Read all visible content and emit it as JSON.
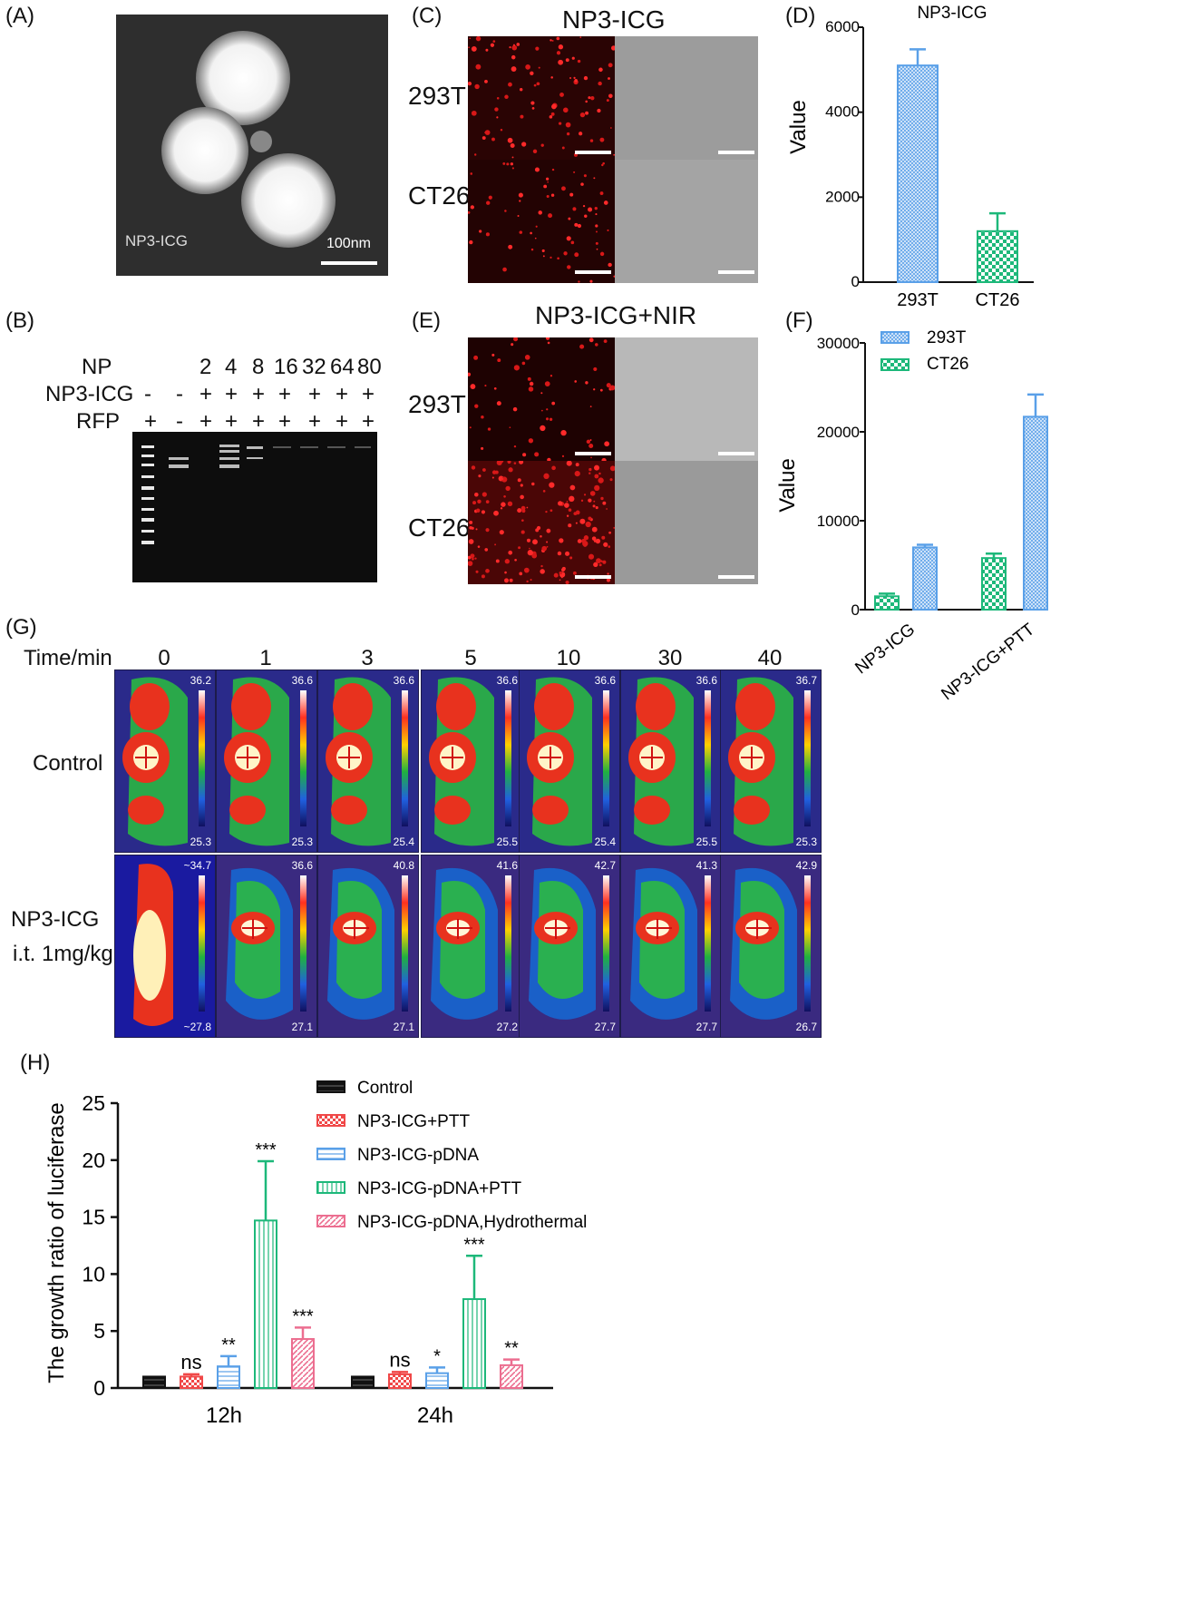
{
  "panels": {
    "A": {
      "label": "(A)",
      "overlay": "NP3-ICG",
      "scale": "100nm"
    },
    "B": {
      "label": "(B)",
      "row_names": [
        "NP",
        "NP3-ICG",
        "RFP"
      ],
      "np_values": [
        "2",
        "4",
        "8",
        "16",
        "32",
        "64",
        "80"
      ],
      "icg_signs": [
        "-",
        "-",
        "+",
        "+",
        "+",
        "+",
        "+",
        "+",
        "+"
      ],
      "rfp_signs": [
        "+",
        "-",
        "+",
        "+",
        "+",
        "+",
        "+",
        "+",
        "+"
      ]
    },
    "C": {
      "label": "(C)",
      "title": "NP3-ICG",
      "rows": [
        "293T",
        "CT26"
      ]
    },
    "E": {
      "label": "(E)",
      "title": "NP3-ICG+NIR",
      "rows": [
        "293T",
        "CT26"
      ]
    },
    "G": {
      "label": "(G)",
      "time_label": "Time/min",
      "times": [
        "0",
        "1",
        "3",
        "5",
        "10",
        "30",
        "40"
      ],
      "row1": "Control",
      "row2a": "NP3-ICG",
      "row2b": "i.t. 1mg/kg",
      "control_max": [
        "36.2",
        "36.6",
        "36.6",
        "36.6",
        "36.6",
        "36.6",
        "36.7"
      ],
      "control_min": [
        "25.3",
        "25.3",
        "25.4",
        "25.5",
        "25.4",
        "25.5",
        "25.3"
      ],
      "icg_max": [
        "~34.7",
        "36.6",
        "40.8",
        "41.6",
        "42.7",
        "41.3",
        "42.9"
      ],
      "icg_min": [
        "~27.8",
        "27.1",
        "27.1",
        "27.2",
        "27.7",
        "27.7",
        "26.7"
      ]
    }
  },
  "colors": {
    "blue": "#5aa0e8",
    "green": "#1db87a",
    "black": "#111111",
    "red": "#f04848",
    "pink": "#ec6e90"
  },
  "chart_data": [
    {
      "id": "D",
      "label": "(D)",
      "type": "bar",
      "title": "NP3-ICG",
      "ylabel": "Value",
      "categories": [
        "293T",
        "CT26"
      ],
      "values": [
        5100,
        1200
      ],
      "errors": [
        380,
        420
      ],
      "ylim": [
        0,
        6000
      ],
      "yticks": [
        "0",
        "2000",
        "4000",
        "6000"
      ]
    },
    {
      "id": "F",
      "label": "(F)",
      "type": "bar",
      "ylabel": "Value",
      "categories": [
        "NP3-ICG",
        "NP3-ICG+PTT"
      ],
      "series": [
        {
          "name": "CT26",
          "values": [
            1500,
            5800
          ],
          "errors": [
            300,
            500
          ]
        },
        {
          "name": "293T",
          "values": [
            7000,
            21700
          ],
          "errors": [
            300,
            2500
          ]
        }
      ],
      "legend": [
        "293T",
        "CT26"
      ],
      "ylim": [
        0,
        30000
      ],
      "yticks": [
        "0",
        "10000",
        "20000",
        "30000"
      ]
    },
    {
      "id": "H",
      "label": "(H)",
      "type": "bar",
      "ylabel": "The growth ratio of luciferase",
      "categories": [
        "12h",
        "24h"
      ],
      "series": [
        {
          "name": "Control",
          "values": [
            1.0,
            1.0
          ],
          "errors": [
            0,
            0
          ],
          "sig": [
            "",
            ""
          ]
        },
        {
          "name": "NP3-ICG+PTT",
          "values": [
            1.0,
            1.2
          ],
          "errors": [
            0.2,
            0.2
          ],
          "sig": [
            "ns",
            "ns"
          ]
        },
        {
          "name": "NP3-ICG-pDNA",
          "values": [
            1.9,
            1.3
          ],
          "errors": [
            0.9,
            0.5
          ],
          "sig": [
            "**",
            "*"
          ]
        },
        {
          "name": "NP3-ICG-pDNA+PTT",
          "values": [
            14.7,
            7.8
          ],
          "errors": [
            5.2,
            3.8
          ],
          "sig": [
            "***",
            "***"
          ]
        },
        {
          "name": "NP3-ICG-pDNA,Hydrothermal",
          "values": [
            4.3,
            2.0
          ],
          "errors": [
            1.0,
            0.5
          ],
          "sig": [
            "***",
            "**"
          ]
        }
      ],
      "ylim": [
        0,
        25
      ],
      "yticks": [
        "0",
        "5",
        "10",
        "15",
        "20",
        "25"
      ]
    }
  ]
}
